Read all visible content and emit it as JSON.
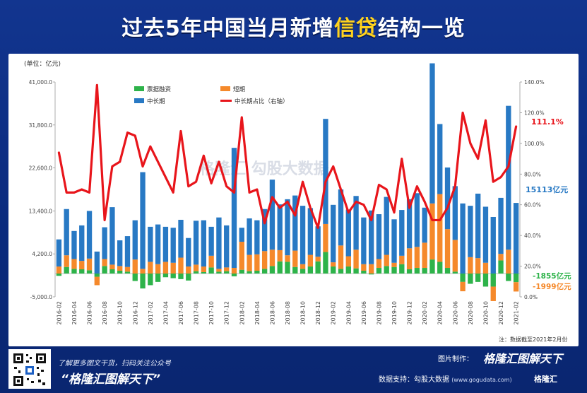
{
  "title": {
    "prefix": "过去5年中国当月新增",
    "highlight": "信贷",
    "suffix": "结构一览"
  },
  "footer": {
    "note": "了解更多图文干货，扫码关注公众号",
    "slogan": "“格隆汇图解天下”",
    "credit_label": "图片制作：",
    "brand": "格隆汇图解天下",
    "support_label": "数据支持：勾股大数据",
    "support_url": "(www.gogudata.com)",
    "logo": "格隆汇"
  },
  "watermark": "格隆汇  勾股大数据",
  "colors": {
    "bills": "#2eb34a",
    "short": "#f5892b",
    "long": "#2879c4",
    "ratio": "#e8151b",
    "ratio_label": "#e8151b",
    "long_label": "#2879c4",
    "bills_label": "#2eb34a",
    "short_label": "#f5892b"
  },
  "chart_data": {
    "type": "bar",
    "stacked": true,
    "unit_label": "(单位：亿元)",
    "source_note": "注：数据截至2021年2月份",
    "categories": [
      "2016-02",
      "2016-03",
      "2016-04",
      "2016-05",
      "2016-06",
      "2016-07",
      "2016-08",
      "2016-09",
      "2016-10",
      "2016-11",
      "2016-12",
      "2017-01",
      "2017-02",
      "2017-03",
      "2017-04",
      "2017-05",
      "2017-06",
      "2017-07",
      "2017-08",
      "2017-09",
      "2017-10",
      "2017-11",
      "2017-12",
      "2018-01",
      "2018-02",
      "2018-03",
      "2018-04",
      "2018-05",
      "2018-06",
      "2018-07",
      "2018-08",
      "2018-09",
      "2018-10",
      "2018-11",
      "2018-12",
      "2019-01",
      "2019-02",
      "2019-03",
      "2019-04",
      "2019-05",
      "2019-06",
      "2019-07",
      "2019-08",
      "2019-09",
      "2019-10",
      "2019-11",
      "2019-12",
      "2020-01",
      "2020-02",
      "2020-03",
      "2020-04",
      "2020-05",
      "2020-06",
      "2020-07",
      "2020-08",
      "2020-09",
      "2020-10",
      "2020-11",
      "2020-12",
      "2021-01",
      "2021-02"
    ],
    "tick_labels": [
      "2016-02",
      "2016-04",
      "2016-06",
      "2016-08",
      "2016-10",
      "2016-12",
      "2017-02",
      "2017-04",
      "2017-06",
      "2017-08",
      "2017-10",
      "2017-12",
      "2018-02",
      "2018-04",
      "2018-06",
      "2018-08",
      "2018-10",
      "2018-12",
      "2019-02",
      "2019-04",
      "2019-06",
      "2019-08",
      "2019-10",
      "2019-12",
      "2020-02",
      "2020-04",
      "2020-06",
      "2020-08",
      "2020-10",
      "2020-12",
      "2021-02"
    ],
    "series": [
      {
        "name": "票据融资",
        "axis": "left",
        "values": [
          -500,
          1400,
          1000,
          900,
          700,
          -700,
          1600,
          900,
          600,
          400,
          -1600,
          -3200,
          -2500,
          -1800,
          -800,
          -1000,
          -1200,
          -1500,
          500,
          300,
          1300,
          400,
          500,
          -600,
          800,
          500,
          600,
          1000,
          1600,
          2600,
          2500,
          1400,
          1000,
          1500,
          2600,
          4600,
          1500,
          1000,
          1500,
          1100,
          600,
          -200,
          1200,
          1600,
          1400,
          2000,
          900,
          1200,
          1200,
          3000,
          2500,
          1200,
          400,
          -1800,
          -2200,
          -1800,
          -2800,
          -2800,
          2800,
          -1600,
          -1855
        ]
      },
      {
        "name": "短期",
        "axis": "left",
        "values": [
          1500,
          2500,
          2100,
          1800,
          2500,
          -1800,
          1500,
          1000,
          1000,
          1000,
          3000,
          1000,
          2500,
          2000,
          2500,
          2300,
          3400,
          1500,
          1400,
          1200,
          2500,
          600,
          800,
          1200,
          6000,
          3500,
          3500,
          3800,
          3500,
          2400,
          1400,
          3500,
          1000,
          2500,
          1000,
          6000,
          900,
          5000,
          2200,
          4000,
          1400,
          2000,
          1900,
          2400,
          900,
          1800,
          4500,
          4500,
          5400,
          12000,
          14500,
          8300,
          6800,
          -2000,
          3500,
          3300,
          2300,
          -3100,
          1400,
          5100,
          -1999
        ]
      },
      {
        "name": "中长期",
        "axis": "left",
        "values": [
          5800,
          9900,
          6000,
          7600,
          10200,
          4700,
          6800,
          12300,
          5500,
          6600,
          8400,
          20700,
          7500,
          8500,
          7500,
          7500,
          8100,
          6100,
          9400,
          9900,
          6200,
          11000,
          9000,
          25700,
          3000,
          7800,
          7300,
          9000,
          15000,
          9800,
          12000,
          11800,
          12500,
          10000,
          6500,
          22500,
          12300,
          12000,
          10000,
          11500,
          10000,
          11500,
          9600,
          12400,
          9300,
          9800,
          10500,
          11500,
          7500,
          30000,
          15000,
          13200,
          11500,
          15000,
          11000,
          13800,
          12000,
          12100,
          12000,
          30800,
          15113
        ]
      },
      {
        "name": "中长期占比（右轴）",
        "axis": "right",
        "type": "line",
        "values": [
          94,
          68,
          68,
          70,
          68,
          138,
          50,
          85,
          88,
          107,
          105,
          85,
          98,
          88,
          78,
          68,
          108,
          72,
          75,
          92,
          74,
          88,
          72,
          68,
          117,
          68,
          70,
          48,
          65,
          58,
          62,
          53,
          75,
          58,
          45,
          75,
          85,
          70,
          55,
          62,
          60,
          50,
          73,
          70,
          55,
          90,
          58,
          72,
          62,
          50,
          50,
          58,
          72,
          120,
          100,
          90,
          115,
          75,
          78,
          85,
          111
        ]
      }
    ],
    "ylim": [
      -5000,
      41000
    ],
    "yticks": [
      "-5,000.0",
      "4,200.0",
      "13,400.0",
      "22,600.0",
      "31,800.0",
      "41,000.0"
    ],
    "ytick_values": [
      -5000,
      4200,
      13400,
      22600,
      31800,
      41000
    ],
    "y2lim": [
      0,
      140
    ],
    "y2ticks": [
      "0.0%",
      "20.0%",
      "40.0%",
      "60.0%",
      "80.0%",
      "100.0%",
      "120.0%",
      "140.0%"
    ],
    "y2tick_values": [
      0,
      20,
      40,
      60,
      80,
      100,
      120,
      140
    ],
    "legend": [
      "票据融资",
      "短期",
      "中长期",
      "中长期占比（右轴）"
    ],
    "annotations": {
      "ratio_last": "111.1%",
      "long_last": "15113亿元",
      "bills_last": "-1855亿元",
      "short_last": "-1999亿元"
    }
  }
}
